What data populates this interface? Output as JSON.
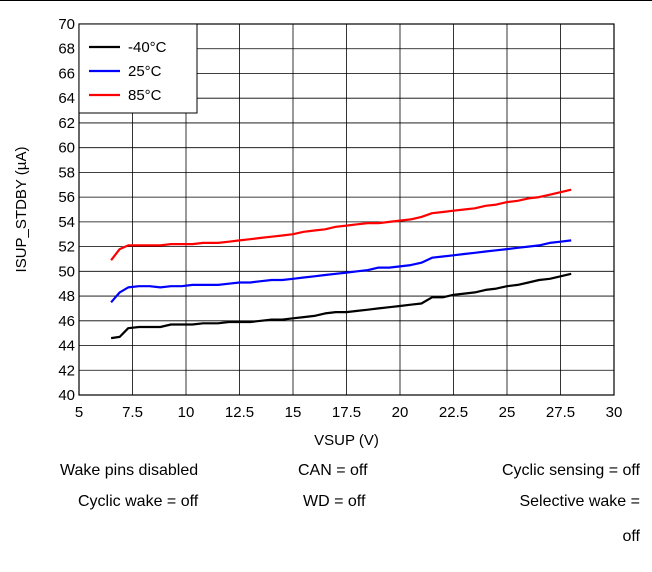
{
  "chart_data": {
    "type": "line",
    "title": "",
    "xlabel": "VSUP (V)",
    "ylabel": "ISUP_STDBY (µA)",
    "xlim": [
      5,
      30
    ],
    "ylim": [
      40,
      70
    ],
    "xticks": [
      5,
      7.5,
      10,
      12.5,
      15,
      17.5,
      20,
      22.5,
      25,
      27.5,
      30
    ],
    "yticks": [
      40,
      42,
      44,
      46,
      48,
      50,
      52,
      54,
      56,
      58,
      60,
      62,
      64,
      66,
      68,
      70
    ],
    "grid": true,
    "legend_position": "top-left",
    "x": [
      6.5,
      6.9,
      7.3,
      7.8,
      8.3,
      8.8,
      9.3,
      9.8,
      10.3,
      10.8,
      11.5,
      12.0,
      12.5,
      13.0,
      13.5,
      14.0,
      14.5,
      15.0,
      15.5,
      16.0,
      16.5,
      17.0,
      17.5,
      18.0,
      18.5,
      19.0,
      19.5,
      20.0,
      20.5,
      21.0,
      21.5,
      22.0,
      22.5,
      23.0,
      23.5,
      24.0,
      24.5,
      25.0,
      25.5,
      26.0,
      26.5,
      27.0,
      27.5,
      28.0
    ],
    "series": [
      {
        "name": "-40°C",
        "color": "#000000",
        "values": [
          44.6,
          44.7,
          45.4,
          45.5,
          45.5,
          45.5,
          45.7,
          45.7,
          45.7,
          45.8,
          45.8,
          45.9,
          45.9,
          45.9,
          46.0,
          46.1,
          46.1,
          46.2,
          46.3,
          46.4,
          46.6,
          46.7,
          46.7,
          46.8,
          46.9,
          47.0,
          47.1,
          47.2,
          47.3,
          47.4,
          47.9,
          47.9,
          48.1,
          48.2,
          48.3,
          48.5,
          48.6,
          48.8,
          48.9,
          49.1,
          49.3,
          49.4,
          49.6,
          49.8
        ]
      },
      {
        "name": "25°C",
        "color": "#0000ff",
        "values": [
          47.5,
          48.3,
          48.7,
          48.8,
          48.8,
          48.7,
          48.8,
          48.8,
          48.9,
          48.9,
          48.9,
          49.0,
          49.1,
          49.1,
          49.2,
          49.3,
          49.3,
          49.4,
          49.5,
          49.6,
          49.7,
          49.8,
          49.9,
          50.0,
          50.1,
          50.3,
          50.3,
          50.4,
          50.5,
          50.7,
          51.1,
          51.2,
          51.3,
          51.4,
          51.5,
          51.6,
          51.7,
          51.8,
          51.9,
          52.0,
          52.1,
          52.3,
          52.4,
          52.5
        ]
      },
      {
        "name": "85°C",
        "color": "#ff0000",
        "values": [
          50.9,
          51.8,
          52.1,
          52.1,
          52.1,
          52.1,
          52.2,
          52.2,
          52.2,
          52.3,
          52.3,
          52.4,
          52.5,
          52.6,
          52.7,
          52.8,
          52.9,
          53.0,
          53.2,
          53.3,
          53.4,
          53.6,
          53.7,
          53.8,
          53.9,
          53.9,
          54.0,
          54.1,
          54.2,
          54.4,
          54.7,
          54.8,
          54.9,
          55.0,
          55.1,
          55.3,
          55.4,
          55.6,
          55.7,
          55.9,
          56.0,
          56.2,
          56.4,
          56.6
        ]
      }
    ]
  },
  "conditions": [
    "Wake pins disabled",
    "CAN = off",
    "Cyclic sensing = off",
    "Cyclic wake = off",
    "WD = off",
    "Selective wake =",
    "off"
  ]
}
